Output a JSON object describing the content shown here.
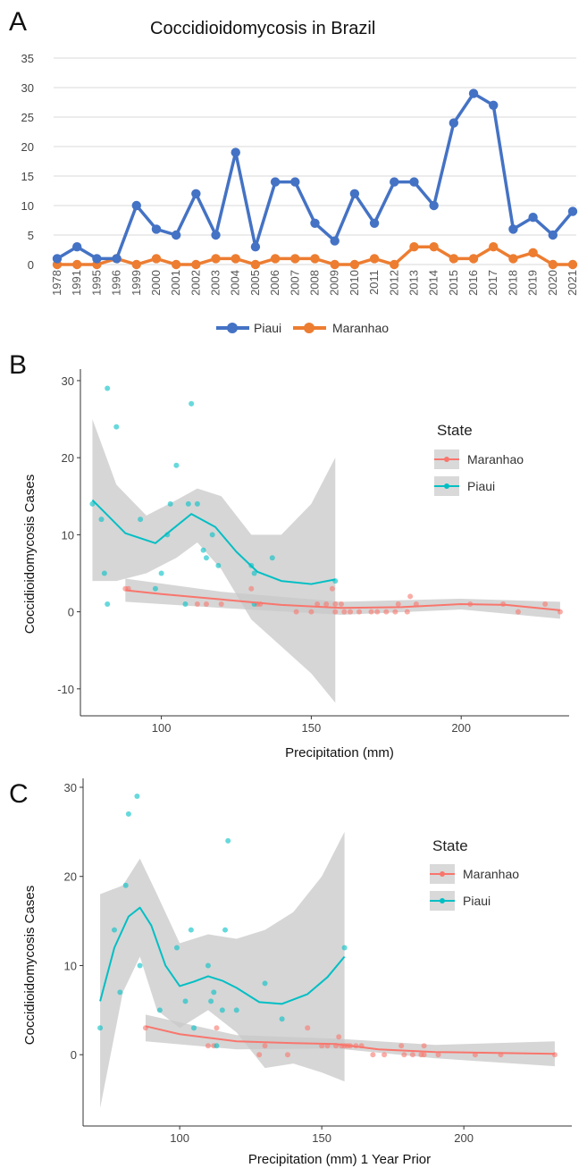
{
  "panels": {
    "a": {
      "letter": "A"
    },
    "b": {
      "letter": "B"
    },
    "c": {
      "letter": "C"
    }
  },
  "chart_data": [
    {
      "type": "line",
      "title": "Coccidioidomycosis in Brazil",
      "categories": [
        "1978",
        "1991",
        "1995",
        "1996",
        "1999",
        "2000",
        "2001",
        "2002",
        "2003",
        "2004",
        "2005",
        "2006",
        "2007",
        "2008",
        "2009",
        "2010",
        "2011",
        "2012",
        "2013",
        "2014",
        "2015",
        "2016",
        "2017",
        "2018",
        "2019",
        "2020",
        "2021"
      ],
      "series": [
        {
          "name": "Piaui",
          "color": "#4472c4",
          "values": [
            1,
            3,
            1,
            1,
            10,
            6,
            5,
            12,
            5,
            19,
            3,
            14,
            14,
            7,
            4,
            12,
            7,
            14,
            14,
            10,
            24,
            29,
            27,
            6,
            8,
            5,
            9
          ]
        },
        {
          "name": "Maranhao",
          "color": "#ed7d31",
          "values": [
            0,
            0,
            0,
            1,
            0,
            1,
            0,
            0,
            1,
            1,
            0,
            1,
            1,
            1,
            0,
            0,
            1,
            0,
            3,
            3,
            1,
            1,
            3,
            1,
            2,
            0,
            0
          ]
        }
      ],
      "ylim": [
        0,
        35
      ],
      "yticks": [
        0,
        5,
        10,
        15,
        20,
        25,
        30,
        35
      ],
      "grid": true,
      "legend": "bottom"
    },
    {
      "type": "scatter",
      "xlabel": "Precipitation (mm)",
      "ylabel": "Coccidioidomycosis Cases",
      "xlim": [
        73,
        236
      ],
      "ylim": [
        -13.5,
        31.5
      ],
      "xticks": [
        100,
        150,
        200
      ],
      "yticks": [
        -10,
        0,
        10,
        20,
        30
      ],
      "legend_title": "State",
      "legend": "right",
      "series": [
        {
          "name": "Maranhao",
          "color": "#f8766d",
          "points": [
            [
              88,
              3
            ],
            [
              89,
              3
            ],
            [
              120,
              1
            ],
            [
              112,
              1
            ],
            [
              115,
              1
            ],
            [
              130,
              3
            ],
            [
              132,
              1
            ],
            [
              133,
              1
            ],
            [
              145,
              0
            ],
            [
              150,
              0
            ],
            [
              152,
              1
            ],
            [
              155,
              1
            ],
            [
              157,
              3
            ],
            [
              158,
              1
            ],
            [
              158,
              0
            ],
            [
              160,
              1
            ],
            [
              161,
              0
            ],
            [
              163,
              0
            ],
            [
              166,
              0
            ],
            [
              170,
              0
            ],
            [
              172,
              0
            ],
            [
              175,
              0
            ],
            [
              178,
              0
            ],
            [
              179,
              1
            ],
            [
              182,
              0
            ],
            [
              183,
              2
            ],
            [
              185,
              1
            ],
            [
              203,
              1
            ],
            [
              214,
              1
            ],
            [
              219,
              0
            ],
            [
              228,
              1
            ],
            [
              233,
              0
            ]
          ],
          "trend": [
            [
              88,
              2.8
            ],
            [
              100,
              2.3
            ],
            [
              120,
              1.6
            ],
            [
              140,
              0.9
            ],
            [
              160,
              0.5
            ],
            [
              180,
              0.6
            ],
            [
              200,
              1.0
            ],
            [
              215,
              0.9
            ],
            [
              233,
              0.2
            ]
          ],
          "band_upper": [
            [
              88,
              4.3
            ],
            [
              120,
              2.6
            ],
            [
              160,
              1.3
            ],
            [
              200,
              1.7
            ],
            [
              233,
              1.3
            ]
          ],
          "band_lower": [
            [
              88,
              1.3
            ],
            [
              120,
              0.5
            ],
            [
              160,
              -0.4
            ],
            [
              200,
              0.3
            ],
            [
              233,
              -0.9
            ]
          ]
        },
        {
          "name": "Piaui",
          "color": "#00bfc4",
          "points": [
            [
              77,
              14
            ],
            [
              80,
              12
            ],
            [
              82,
              29
            ],
            [
              81,
              5
            ],
            [
              82,
              1
            ],
            [
              85,
              24
            ],
            [
              93,
              12
            ],
            [
              98,
              3
            ],
            [
              100,
              5
            ],
            [
              102,
              10
            ],
            [
              103,
              14
            ],
            [
              105,
              19
            ],
            [
              108,
              1
            ],
            [
              109,
              14
            ],
            [
              110,
              27
            ],
            [
              112,
              14
            ],
            [
              114,
              8
            ],
            [
              115,
              7
            ],
            [
              117,
              10
            ],
            [
              119,
              6
            ],
            [
              130,
              6
            ],
            [
              131,
              5
            ],
            [
              131,
              1
            ],
            [
              137,
              7
            ],
            [
              158,
              4
            ]
          ],
          "trend": [
            [
              77,
              14.5
            ],
            [
              88,
              10.2
            ],
            [
              98,
              8.9
            ],
            [
              103,
              10.5
            ],
            [
              110,
              12.7
            ],
            [
              118,
              11.0
            ],
            [
              125,
              7.8
            ],
            [
              132,
              5.2
            ],
            [
              140,
              4.0
            ],
            [
              150,
              3.6
            ],
            [
              158,
              4.2
            ]
          ],
          "band_upper": [
            [
              77,
              25
            ],
            [
              85,
              16.5
            ],
            [
              95,
              12.5
            ],
            [
              105,
              14.5
            ],
            [
              112,
              16
            ],
            [
              120,
              15
            ],
            [
              130,
              10
            ],
            [
              140,
              10
            ],
            [
              150,
              14
            ],
            [
              158,
              20
            ]
          ],
          "band_lower": [
            [
              77,
              4
            ],
            [
              85,
              4
            ],
            [
              95,
              5
            ],
            [
              105,
              7
            ],
            [
              112,
              9
            ],
            [
              120,
              5.5
            ],
            [
              130,
              -1
            ],
            [
              140,
              -4.5
            ],
            [
              150,
              -8
            ],
            [
              158,
              -11.8
            ]
          ]
        }
      ]
    },
    {
      "type": "scatter",
      "xlabel": "Precipitation (mm) 1 Year Prior",
      "ylabel": "Coccidioidomycosis Cases",
      "xlim": [
        66,
        238
      ],
      "ylim": [
        -8,
        31
      ],
      "xticks": [
        100,
        150,
        200
      ],
      "yticks": [
        0,
        10,
        20,
        30
      ],
      "legend_title": "State",
      "legend": "right",
      "series": [
        {
          "name": "Maranhao",
          "color": "#f8766d",
          "points": [
            [
              88,
              3
            ],
            [
              110,
              1
            ],
            [
              112,
              1
            ],
            [
              113,
              3
            ],
            [
              128,
              0
            ],
            [
              130,
              1
            ],
            [
              138,
              0
            ],
            [
              145,
              3
            ],
            [
              150,
              1
            ],
            [
              152,
              1
            ],
            [
              155,
              1
            ],
            [
              156,
              2
            ],
            [
              157,
              1
            ],
            [
              158,
              1
            ],
            [
              159,
              1
            ],
            [
              160,
              1
            ],
            [
              162,
              1
            ],
            [
              164,
              1
            ],
            [
              168,
              0
            ],
            [
              172,
              0
            ],
            [
              178,
              1
            ],
            [
              179,
              0
            ],
            [
              182,
              0
            ],
            [
              185,
              0
            ],
            [
              186,
              0
            ],
            [
              186,
              1
            ],
            [
              191,
              0
            ],
            [
              204,
              0
            ],
            [
              213,
              0
            ],
            [
              232,
              0
            ]
          ],
          "trend": [
            [
              88,
              3.2
            ],
            [
              100,
              2.3
            ],
            [
              120,
              1.5
            ],
            [
              140,
              1.3
            ],
            [
              155,
              1.2
            ],
            [
              170,
              0.6
            ],
            [
              190,
              0.3
            ],
            [
              232,
              0.1
            ]
          ],
          "band_upper": [
            [
              88,
              4.5
            ],
            [
              120,
              2.2
            ],
            [
              155,
              1.8
            ],
            [
              190,
              1.1
            ],
            [
              232,
              1.5
            ]
          ],
          "band_lower": [
            [
              88,
              1.5
            ],
            [
              120,
              0.6
            ],
            [
              155,
              0.7
            ],
            [
              190,
              -0.4
            ],
            [
              232,
              -1.3
            ]
          ]
        },
        {
          "name": "Piaui",
          "color": "#00bfc4",
          "points": [
            [
              72,
              3
            ],
            [
              77,
              14
            ],
            [
              79,
              7
            ],
            [
              81,
              19
            ],
            [
              82,
              27
            ],
            [
              85,
              29
            ],
            [
              86,
              10
            ],
            [
              93,
              5
            ],
            [
              99,
              12
            ],
            [
              102,
              6
            ],
            [
              104,
              14
            ],
            [
              105,
              3
            ],
            [
              110,
              10
            ],
            [
              111,
              6
            ],
            [
              112,
              7
            ],
            [
              113,
              1
            ],
            [
              115,
              5
            ],
            [
              116,
              14
            ],
            [
              117,
              24
            ],
            [
              120,
              5
            ],
            [
              130,
              8
            ],
            [
              136,
              4
            ],
            [
              158,
              12
            ]
          ],
          "trend": [
            [
              72,
              6
            ],
            [
              77,
              12
            ],
            [
              82,
              15.5
            ],
            [
              86,
              16.5
            ],
            [
              90,
              14.5
            ],
            [
              95,
              10
            ],
            [
              100,
              7.7
            ],
            [
              105,
              8.2
            ],
            [
              110,
              8.8
            ],
            [
              115,
              8.3
            ],
            [
              120,
              7.5
            ],
            [
              128,
              5.9
            ],
            [
              136,
              5.7
            ],
            [
              145,
              6.8
            ],
            [
              152,
              8.7
            ],
            [
              158,
              11
            ]
          ],
          "band_upper": [
            [
              72,
              18
            ],
            [
              80,
              19
            ],
            [
              86,
              22
            ],
            [
              92,
              18
            ],
            [
              100,
              12.5
            ],
            [
              110,
              13.5
            ],
            [
              120,
              13
            ],
            [
              130,
              14
            ],
            [
              140,
              16
            ],
            [
              150,
              20
            ],
            [
              158,
              25
            ]
          ],
          "band_lower": [
            [
              72,
              -6
            ],
            [
              80,
              7
            ],
            [
              86,
              11
            ],
            [
              92,
              5
            ],
            [
              100,
              3
            ],
            [
              110,
              5
            ],
            [
              120,
              2.5
            ],
            [
              130,
              -1.5
            ],
            [
              140,
              -1
            ],
            [
              150,
              -2
            ],
            [
              158,
              -3
            ]
          ]
        }
      ]
    }
  ]
}
